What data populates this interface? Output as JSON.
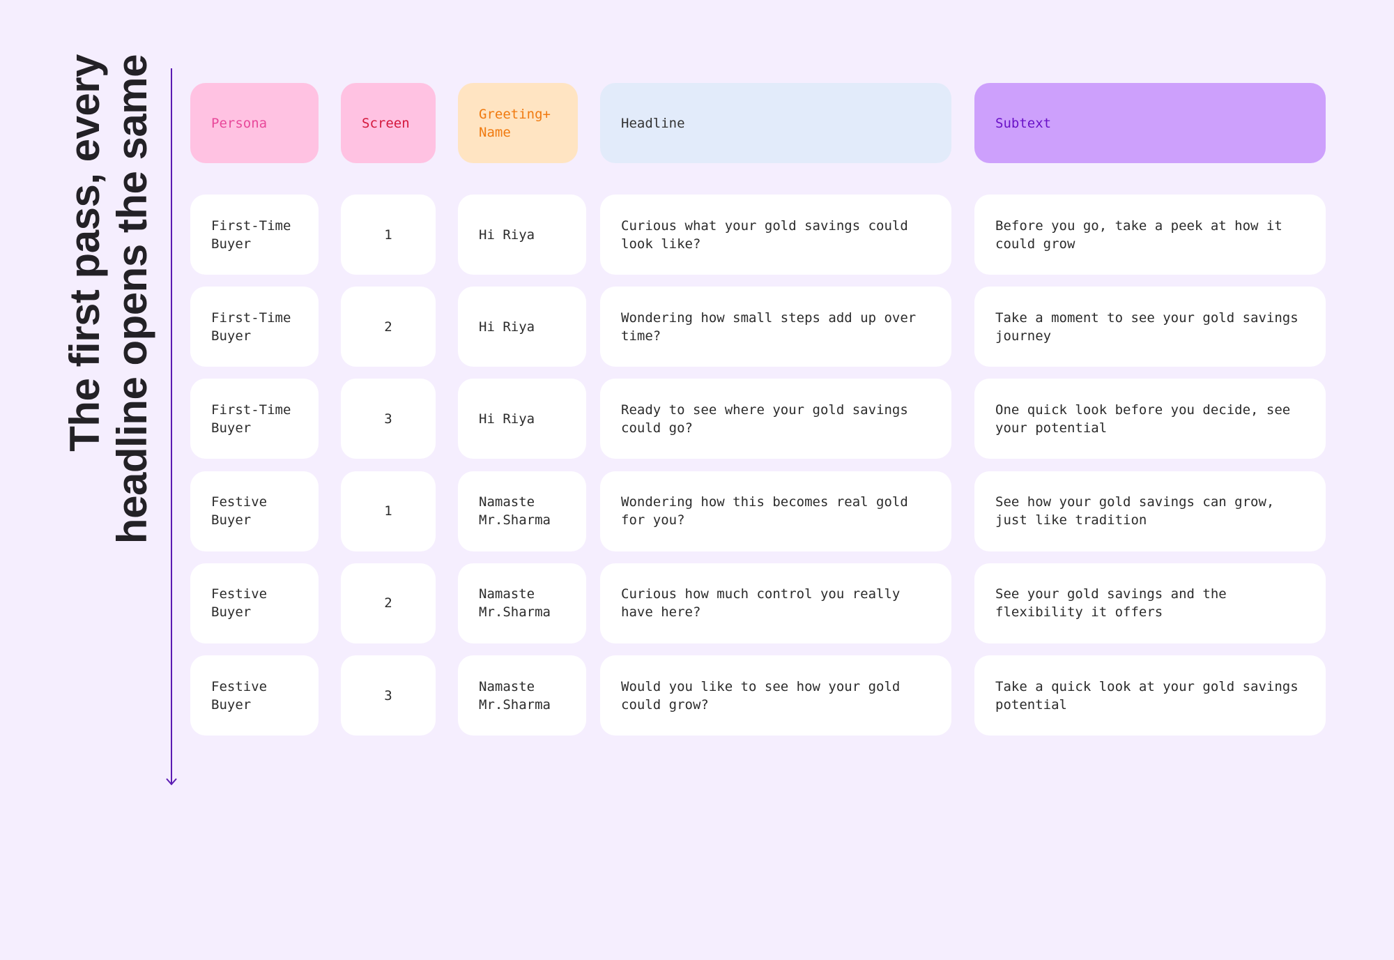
{
  "header": {
    "title": "The first pass, every headline opens the same"
  },
  "table": {
    "columns": [
      "Persona",
      "Screen",
      "Greeting+ Name",
      "Headline",
      "Subtext"
    ],
    "rows": [
      [
        "First-Time Buyer",
        "1",
        "Hi Riya",
        "Curious what your gold savings could look like?",
        "Before you go, take a peek at how it could grow"
      ],
      [
        "First-Time Buyer",
        "2",
        "Hi Riya",
        "Wondering how small steps add up over time?",
        "Take a moment to see your gold savings journey"
      ],
      [
        "First-Time Buyer",
        "3",
        "Hi Riya",
        "Ready to see where your gold savings could go?",
        "One quick look before you decide, see your potential"
      ],
      [
        "Festive Buyer",
        "1",
        "Namaste Mr.Sharma",
        "Wondering how this becomes real gold for you?",
        "See how your gold savings can grow, just like tradition"
      ],
      [
        "Festive Buyer",
        "2",
        "Namaste Mr.Sharma",
        "Curious how much control you really have here?",
        "See your gold savings and the flexibility it offers"
      ],
      [
        "Festive Buyer",
        "3",
        "Namaste Mr.Sharma",
        "Would you like to see how your gold could grow?",
        "Take a quick look at your gold savings potential"
      ]
    ]
  }
}
